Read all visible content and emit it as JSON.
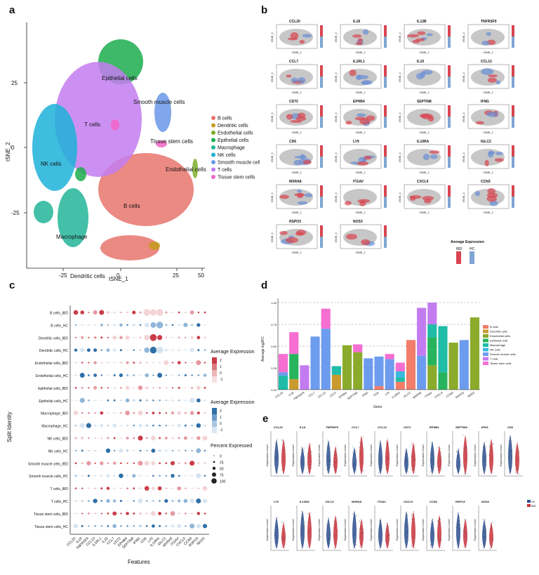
{
  "panels": {
    "a": "a",
    "b": "b",
    "c": "c",
    "d": "d",
    "e": "e"
  },
  "panel_a": {
    "xlabel": "tSNE_1",
    "ylabel": "tSNE_2",
    "x_ticks": [
      "-25",
      "0",
      "25",
      "50"
    ],
    "y_ticks": [
      "25",
      "0",
      "-25"
    ],
    "clusters": [
      {
        "name": "B cells",
        "color": "#e8766d"
      },
      {
        "name": "Dendritic cells",
        "color": "#c49a1c"
      },
      {
        "name": "Endothelial cells",
        "color": "#7cad2b"
      },
      {
        "name": "Epithelial cells",
        "color": "#1cad4c"
      },
      {
        "name": "Macrophage",
        "color": "#22b598"
      },
      {
        "name": "NK cells",
        "color": "#1db1d8"
      },
      {
        "name": "Smooth muscle cells",
        "color": "#6a98e8"
      },
      {
        "name": "T cells",
        "color": "#c37cf0"
      },
      {
        "name": "Tissue stem cells",
        "color": "#f266c8"
      }
    ],
    "in_plot_labels": [
      "Epithelial cells",
      "T cells",
      "Smooth muscle cells",
      "Tissue stem cells",
      "NK cells",
      "Endothelial cells",
      "B cells",
      "Macrophage",
      "Dendritic cells"
    ]
  },
  "panel_b": {
    "genes": [
      "CCL20",
      "IL18",
      "IL12B",
      "TNFRSF9",
      "CCL7",
      "IL1RL1",
      "IL19",
      "CCL13",
      "CD72",
      "EPHB4",
      "SEPTIN8",
      "IFNG",
      "CD6",
      "LY9",
      "IL10RA",
      "IGLC2",
      "MXRA8",
      "ITGAV",
      "CXCL9",
      "CCN3",
      "RSPO3",
      "NOS3"
    ],
    "xlabel": "tSNE_1",
    "ylabel": "tSNE_2",
    "legend_title": "Average Expression",
    "legend_groups": [
      "IBD",
      "HC"
    ]
  },
  "panel_c": {
    "xlabel": "Features",
    "ylabel": "Split Identity",
    "rows": [
      "B cells_IBD",
      "B cells_HC",
      "Dendritic cells_IBD",
      "Dendritic cells_HC",
      "Endothelial cells_IBD",
      "Endothelial cells_HC",
      "Epithelial cells_IBD",
      "Epithelial cells_HC",
      "Macrophage_IBD",
      "Macrophage_HC",
      "NK cells_IBD",
      "NK cells_HC",
      "Smooth muscle cells_IBD",
      "Smooth muscle cells_HC",
      "T cells_IBD",
      "T cells_HC",
      "Tissue stem cells_IBD",
      "Tissue stem cells_HC"
    ],
    "features": [
      "CCL20",
      "IL18",
      "TNFRSF9",
      "CCL13",
      "IL1RL1",
      "IL19",
      "CCL7",
      "CD72",
      "EPHB4",
      "SEPTIN8",
      "IFNG",
      "CD6",
      "LY9",
      "IL10RA",
      "IGLC2",
      "MXRA8",
      "ITGAV",
      "CXCL9",
      "CCN3",
      "RSPO3",
      "NOS3"
    ],
    "legend_avg_title": "Average Expression",
    "legend_avg_ibd_ticks": [
      "2",
      "1",
      "0",
      "-1"
    ],
    "legend_avg_hc_ticks": [
      "2",
      "1",
      "0",
      "-1"
    ],
    "legend_pct_title": "Percent Expressed",
    "legend_pct_values": [
      "0",
      "25",
      "50",
      "75",
      "100"
    ]
  },
  "panel_d": {
    "ylabel": "Average log2FC",
    "xlabel": "Gene",
    "y_ticks": [
      "1.00",
      "0.75",
      "0.50",
      "0.25",
      "0.00"
    ],
    "legend": [
      "B cells",
      "Dendritic cells",
      "Endothelial cells",
      "Epithelial cells",
      "Macrophage",
      "NK cells",
      "Smooth muscle cells",
      "T cells",
      "Tissue stem cells"
    ]
  },
  "panel_e": {
    "row1_genes": [
      "CCL20",
      "IL18",
      "TNFRSF9",
      "CCL7",
      "CCL13",
      "CD72",
      "EPHB4",
      "SEPTIN8",
      "IFNG",
      "CD6"
    ],
    "row2_genes": [
      "LY9",
      "IL10RA",
      "IGLC2",
      "MXRA8",
      "ITGAV",
      "CXCL9",
      "CCN3",
      "RSPO3",
      "NOS3"
    ],
    "ylabel": "Expression Level",
    "legend": [
      "HC",
      "IBD"
    ]
  },
  "chart_data": [
    {
      "type": "bar",
      "title": "",
      "xlabel": "Gene",
      "ylabel": "Average log2FC",
      "ylim": [
        0,
        1.0
      ],
      "categories": [
        "CCL20",
        "IL18",
        "TNFRSF9",
        "CCL7",
        "CCL13",
        "CD72",
        "EPHB4",
        "SEPTIN8",
        "IFNG",
        "CD6",
        "LY9",
        "IL10RA",
        "IGLC2",
        "MXRA8",
        "ITGAV",
        "CXCL9",
        "CCN3",
        "RSPO3",
        "NOS3"
      ],
      "stacked": true,
      "series": [
        {
          "name": "B cells",
          "values": [
            0,
            0,
            0,
            0,
            0,
            0,
            0,
            0,
            0,
            0.04,
            0,
            0.09,
            0.57,
            0,
            0,
            0,
            0,
            0,
            0
          ]
        },
        {
          "name": "Dendritic cells",
          "values": [
            0,
            0.12,
            0,
            0,
            0,
            0.17,
            0,
            0,
            0,
            0,
            0,
            0,
            0,
            0,
            0,
            0,
            0,
            0,
            0
          ]
        },
        {
          "name": "Endothelial cells",
          "values": [
            0,
            0,
            0,
            0,
            0,
            0,
            0.51,
            0.43,
            0,
            0,
            0,
            0,
            0,
            0,
            0.28,
            0,
            0.54,
            0,
            0.83
          ]
        },
        {
          "name": "Epithelial cells",
          "values": [
            0,
            0.29,
            0,
            0,
            0,
            0,
            0,
            0,
            0,
            0,
            0,
            0,
            0,
            0,
            0.32,
            0.2,
            0,
            0,
            0
          ]
        },
        {
          "name": "Macrophage",
          "values": [
            0.16,
            0,
            0,
            0,
            0,
            0.1,
            0,
            0,
            0,
            0,
            0,
            0.05,
            0,
            0,
            0.15,
            0.53,
            0,
            0,
            0
          ]
        },
        {
          "name": "NK cells",
          "values": [
            0,
            0,
            0,
            0,
            0,
            0,
            0,
            0,
            0,
            0,
            0,
            0.07,
            0,
            0,
            0,
            0,
            0,
            0,
            0
          ]
        },
        {
          "name": "Smooth muscle cells",
          "values": [
            0.04,
            0,
            0,
            0.61,
            0.7,
            0,
            0,
            0,
            0.36,
            0.34,
            0.35,
            0,
            0,
            0.39,
            0,
            0,
            0,
            0.57,
            0
          ]
        },
        {
          "name": "T cells",
          "values": [
            0,
            0,
            0.28,
            0,
            0,
            0,
            0,
            0,
            0,
            0,
            0,
            0,
            0,
            0.55,
            0.25,
            0,
            0,
            0,
            0
          ]
        },
        {
          "name": "Tissue stem cells",
          "values": [
            0.21,
            0.25,
            0,
            0,
            0.23,
            0,
            0,
            0.09,
            0,
            0,
            0.06,
            0.1,
            0,
            0,
            0,
            0,
            0,
            0,
            0
          ]
        }
      ]
    }
  ]
}
